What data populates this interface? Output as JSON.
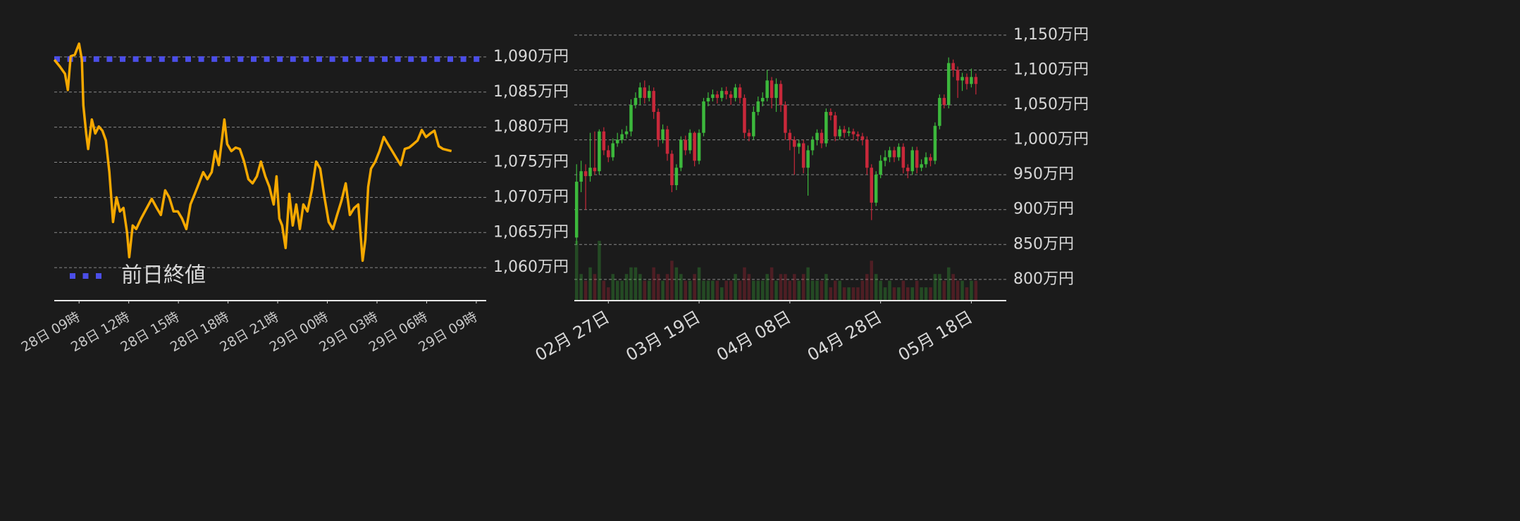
{
  "chart_data": [
    {
      "type": "line",
      "color": "#f5a800",
      "x": [
        -1.49,
        -1.15,
        -0.85,
        -0.68,
        -0.51,
        -0.26,
        0,
        0.17,
        0.26,
        0.43,
        0.55,
        0.77,
        0.98,
        1.19,
        1.41,
        1.62,
        1.83,
        2.05,
        2.26,
        2.47,
        2.68,
        2.9,
        3.03,
        3.24,
        3.45,
        3.75,
        4.09,
        4.39,
        4.69,
        4.94,
        5.2,
        5.45,
        5.71,
        5.97,
        6.22,
        6.48,
        6.73,
        6.99,
        7.24,
        7.5,
        7.75,
        8.01,
        8.22,
        8.44,
        8.65,
        8.78,
        8.95,
        9.2,
        9.46,
        9.71,
        9.97,
        10.23,
        10.48,
        10.74,
        10.99,
        11.25,
        11.5,
        11.76,
        11.93,
        12.1,
        12.27,
        12.48,
        12.7,
        12.91,
        13.12,
        13.34,
        13.55,
        13.8,
        14.06,
        14.32,
        14.57,
        14.83,
        15.08,
        15.34,
        15.59,
        15.85,
        16.11,
        16.36,
        16.62,
        16.87,
        17.13,
        17.3,
        17.47,
        17.64,
        17.9,
        18.15,
        18.41,
        18.66,
        18.92,
        19.17,
        19.43,
        19.68,
        19.94,
        20.2,
        20.45,
        20.71,
        20.96,
        21.22,
        21.47,
        21.73,
        21.99,
        22.5
      ],
      "values": [
        1089.6,
        1088.6,
        1087.6,
        1085.3,
        1090.1,
        1090.3,
        1091.9,
        1089.6,
        1083.1,
        1079.1,
        1076.9,
        1081.1,
        1079.1,
        1080.1,
        1079.5,
        1078.1,
        1073.6,
        1066.5,
        1070,
        1068,
        1068.5,
        1065,
        1061.5,
        1066,
        1065.5,
        1067,
        1068.5,
        1069.8,
        1068.5,
        1067.5,
        1071,
        1070,
        1068,
        1068,
        1067,
        1065.5,
        1069,
        1070.5,
        1072,
        1073.6,
        1072.6,
        1073.6,
        1076.6,
        1074.6,
        1078.6,
        1081.1,
        1077.6,
        1076.6,
        1077.1,
        1076.9,
        1075.1,
        1072.6,
        1072,
        1073,
        1075.1,
        1073,
        1071.5,
        1069,
        1073,
        1067,
        1066,
        1062.8,
        1070.5,
        1066,
        1069,
        1065.5,
        1069,
        1068,
        1071,
        1075.1,
        1074.1,
        1070,
        1066.5,
        1065.5,
        1067.5,
        1069.5,
        1072,
        1067.5,
        1068.5,
        1069,
        1061,
        1064,
        1071.5,
        1074.1,
        1075.1,
        1076.6,
        1078.6,
        1077.6,
        1076.6,
        1075.6,
        1074.6,
        1076.9,
        1077.1,
        1077.6,
        1078.1,
        1079.6,
        1078.6,
        1079.1,
        1079.5,
        1077.3,
        1076.9,
        1076.6
      ],
      "reference_line": {
        "name": "前日終値",
        "value": 1089.7,
        "color": "#4b4ee8"
      },
      "legend": "lower left",
      "grid": true,
      "xlim": [
        -1.5,
        24.6
      ],
      "xticks": [
        {
          "value": 0,
          "label": "28日 09時"
        },
        {
          "value": 3,
          "label": "28日 12時"
        },
        {
          "value": 6,
          "label": "28日 15時"
        },
        {
          "value": 9,
          "label": "28日 18時"
        },
        {
          "value": 12,
          "label": "28日 21時"
        },
        {
          "value": 15,
          "label": "29日 00時"
        },
        {
          "value": 18,
          "label": "29日 03時"
        },
        {
          "value": 21,
          "label": "29日 06時"
        },
        {
          "value": 24,
          "label": "29日 09時"
        }
      ],
      "ylim": [
        1055.3,
        1092.6
      ],
      "yticks": [
        {
          "value": 1060,
          "label": "1,060万円"
        },
        {
          "value": 1065,
          "label": "1,065万円"
        },
        {
          "value": 1070,
          "label": "1,070万円"
        },
        {
          "value": 1075,
          "label": "1,075万円"
        },
        {
          "value": 1080,
          "label": "1,080万円"
        },
        {
          "value": 1085,
          "label": "1,085万円"
        },
        {
          "value": 1090,
          "label": "1,090万円"
        }
      ]
    },
    {
      "type": "candlestick",
      "up_color": "#3cb83c",
      "down_color": "#c8283a",
      "grid": true,
      "x": [
        -7,
        -6,
        -5,
        -4,
        -3,
        -2,
        -1,
        0,
        1,
        2,
        3,
        4,
        5,
        6,
        7,
        8,
        9,
        10,
        11,
        12,
        13,
        14,
        15,
        16,
        17,
        18,
        19,
        20,
        21,
        22,
        23,
        24,
        25,
        26,
        27,
        28,
        29,
        30,
        31,
        32,
        33,
        34,
        35,
        36,
        37,
        38,
        39,
        40,
        41,
        42,
        43,
        44,
        45,
        46,
        47,
        48,
        49,
        50,
        51,
        52,
        53,
        54,
        55,
        56,
        57,
        58,
        59,
        60,
        61,
        62,
        63,
        64,
        65,
        66,
        67,
        68,
        69,
        70,
        71,
        72,
        73,
        74,
        75,
        76,
        77,
        78,
        79,
        80,
        81
      ],
      "open": [
        860,
        940,
        955,
        948,
        960,
        955,
        1012,
        985,
        975,
        995,
        1000,
        1008,
        1012,
        1050,
        1060,
        1075,
        1060,
        1070,
        1040,
        1000,
        1015,
        980,
        935,
        960,
        1000,
        985,
        1010,
        970,
        1010,
        1055,
        1060,
        1065,
        1060,
        1070,
        1065,
        1060,
        1075,
        1060,
        1010,
        1005,
        1040,
        1055,
        1060,
        1085,
        1060,
        1080,
        1050,
        1010,
        1000,
        990,
        995,
        960,
        985,
        1000,
        1010,
        995,
        1040,
        1035,
        1005,
        1015,
        1010,
        1012,
        1008,
        1005,
        1000,
        960,
        910,
        950,
        970,
        975,
        985,
        975,
        990,
        960,
        955,
        985,
        960,
        965,
        975,
        970,
        1020,
        1060,
        1050,
        1110,
        1100,
        1085,
        1090,
        1080,
        1090
      ],
      "high": [
        965,
        970,
        965,
        1010,
        1012,
        1015,
        1018,
        992,
        1002,
        1010,
        1015,
        1020,
        1058,
        1068,
        1082,
        1085,
        1078,
        1075,
        1045,
        1022,
        1020,
        985,
        965,
        1005,
        1006,
        1015,
        1012,
        1015,
        1060,
        1068,
        1072,
        1070,
        1075,
        1076,
        1070,
        1080,
        1080,
        1065,
        1015,
        1048,
        1062,
        1068,
        1100,
        1090,
        1088,
        1085,
        1055,
        1015,
        1005,
        1000,
        1000,
        992,
        1005,
        1015,
        1015,
        1045,
        1045,
        1040,
        1020,
        1020,
        1018,
        1016,
        1012,
        1010,
        1005,
        965,
        955,
        978,
        985,
        990,
        990,
        995,
        995,
        965,
        990,
        990,
        972,
        982,
        980,
        1025,
        1065,
        1065,
        1118,
        1115,
        1105,
        1096,
        1095,
        1102,
        1095
      ],
      "low": [
        850,
        925,
        900,
        940,
        950,
        950,
        978,
        968,
        970,
        990,
        995,
        1002,
        1005,
        1045,
        1050,
        1052,
        1055,
        1030,
        990,
        995,
        970,
        925,
        928,
        955,
        978,
        980,
        962,
        965,
        1005,
        1048,
        1055,
        1052,
        1055,
        1058,
        1050,
        1055,
        1052,
        1002,
        998,
        1000,
        1035,
        1048,
        1055,
        1045,
        1040,
        1040,
        1000,
        985,
        950,
        980,
        952,
        920,
        978,
        992,
        988,
        990,
        1028,
        998,
        1000,
        1003,
        1005,
        1000,
        998,
        992,
        950,
        885,
        905,
        945,
        962,
        968,
        968,
        970,
        952,
        945,
        950,
        952,
        955,
        960,
        962,
        965,
        1015,
        1045,
        1045,
        1090,
        1060,
        1070,
        1072,
        1075,
        1065
      ],
      "close": [
        940,
        955,
        948,
        960,
        955,
        1012,
        985,
        975,
        995,
        1000,
        1008,
        1012,
        1050,
        1060,
        1075,
        1060,
        1070,
        1040,
        1000,
        1015,
        980,
        935,
        960,
        1000,
        985,
        1010,
        970,
        1010,
        1055,
        1060,
        1065,
        1060,
        1070,
        1065,
        1060,
        1075,
        1060,
        1010,
        1005,
        1040,
        1055,
        1060,
        1085,
        1060,
        1080,
        1050,
        1010,
        1000,
        990,
        995,
        960,
        985,
        1000,
        1010,
        995,
        1040,
        1035,
        1005,
        1015,
        1010,
        1012,
        1008,
        1005,
        1000,
        960,
        910,
        950,
        970,
        975,
        985,
        975,
        990,
        960,
        955,
        985,
        960,
        965,
        975,
        970,
        1020,
        1060,
        1050,
        1110,
        1100,
        1085,
        1090,
        1080,
        1090,
        1080
      ],
      "volume": [
        9,
        4,
        3,
        5,
        4,
        9,
        3,
        2,
        4,
        3,
        3,
        4,
        5,
        5,
        4,
        3,
        3,
        5,
        4,
        3,
        4,
        6,
        5,
        4,
        3,
        3,
        4,
        5,
        3,
        3,
        3,
        3,
        2,
        3,
        3,
        4,
        3,
        5,
        4,
        3,
        3,
        3,
        4,
        5,
        3,
        4,
        4,
        3,
        4,
        3,
        4,
        5,
        3,
        3,
        3,
        4,
        2,
        3,
        3,
        2,
        2,
        2,
        2,
        3,
        4,
        6,
        4,
        3,
        2,
        3,
        2,
        2,
        3,
        2,
        2,
        3,
        2,
        2,
        2,
        4,
        4,
        3,
        5,
        4,
        3,
        3,
        2,
        3,
        3
      ],
      "xlim": [
        -7.5,
        87.7
      ],
      "xticks": [
        {
          "value": 0,
          "label": "02月 27日"
        },
        {
          "value": 20,
          "label": "03月 19日"
        },
        {
          "value": 40,
          "label": "04月 08日"
        },
        {
          "value": 60,
          "label": "04月 28日"
        },
        {
          "value": 80,
          "label": "05月 18日"
        }
      ],
      "ylim": [
        769.6,
        1165
      ],
      "yticks": [
        {
          "value": 800,
          "label": "800万円"
        },
        {
          "value": 850,
          "label": "850万円"
        },
        {
          "value": 900,
          "label": "900万円"
        },
        {
          "value": 950,
          "label": "950万円"
        },
        {
          "value": 1000,
          "label": "1,000万円"
        },
        {
          "value": 1050,
          "label": "1,050万円"
        },
        {
          "value": 1100,
          "label": "1,100万円"
        },
        {
          "value": 1150,
          "label": "1,150万円"
        }
      ]
    }
  ]
}
